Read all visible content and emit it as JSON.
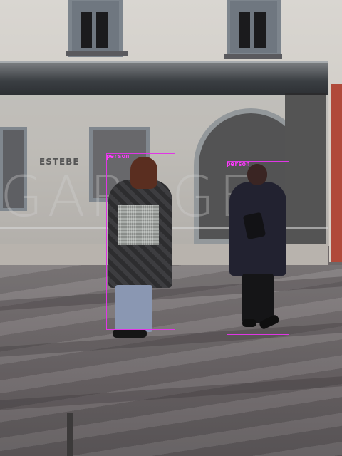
{
  "scene": {
    "storefront_sign": "ESTEBE",
    "window_letters": "GARAGE"
  },
  "detections": [
    {
      "label": "person",
      "box_color": "#e036e6"
    },
    {
      "label": "person",
      "box_color": "#e036e6"
    }
  ]
}
